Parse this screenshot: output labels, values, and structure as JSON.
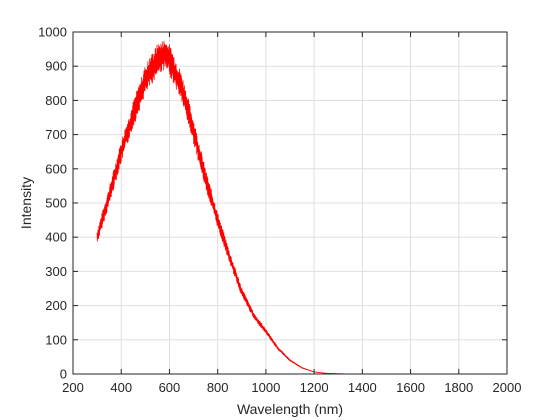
{
  "chart_data": {
    "type": "line",
    "title": "",
    "xlabel": "Wavelength (nm)",
    "ylabel": "Intensity",
    "xlim": [
      200,
      2000
    ],
    "ylim": [
      0,
      1000
    ],
    "xticks": [
      200,
      400,
      600,
      800,
      1000,
      1200,
      1400,
      1600,
      1800,
      2000
    ],
    "yticks": [
      0,
      100,
      200,
      300,
      400,
      500,
      600,
      700,
      800,
      900,
      1000
    ],
    "grid": true,
    "legend": "none",
    "series": [
      {
        "color": "#ff0000",
        "noise_amplitude": 45,
        "x": [
          300,
          350,
          400,
          450,
          500,
          550,
          580,
          600,
          650,
          700,
          750,
          800,
          850,
          900,
          950,
          1000,
          1050,
          1100,
          1150,
          1200,
          1250,
          1300,
          1350,
          1400,
          1600,
          1800,
          2000
        ],
        "y": [
          400,
          520,
          650,
          760,
          860,
          920,
          935,
          920,
          840,
          710,
          570,
          450,
          340,
          240,
          170,
          125,
          75,
          40,
          18,
          6,
          2,
          1,
          0,
          0,
          0,
          0,
          0
        ]
      }
    ]
  },
  "colors": {
    "axis": "#262626",
    "grid": "#dfdfdf",
    "background": "#ffffff",
    "line": "#ff0000"
  }
}
